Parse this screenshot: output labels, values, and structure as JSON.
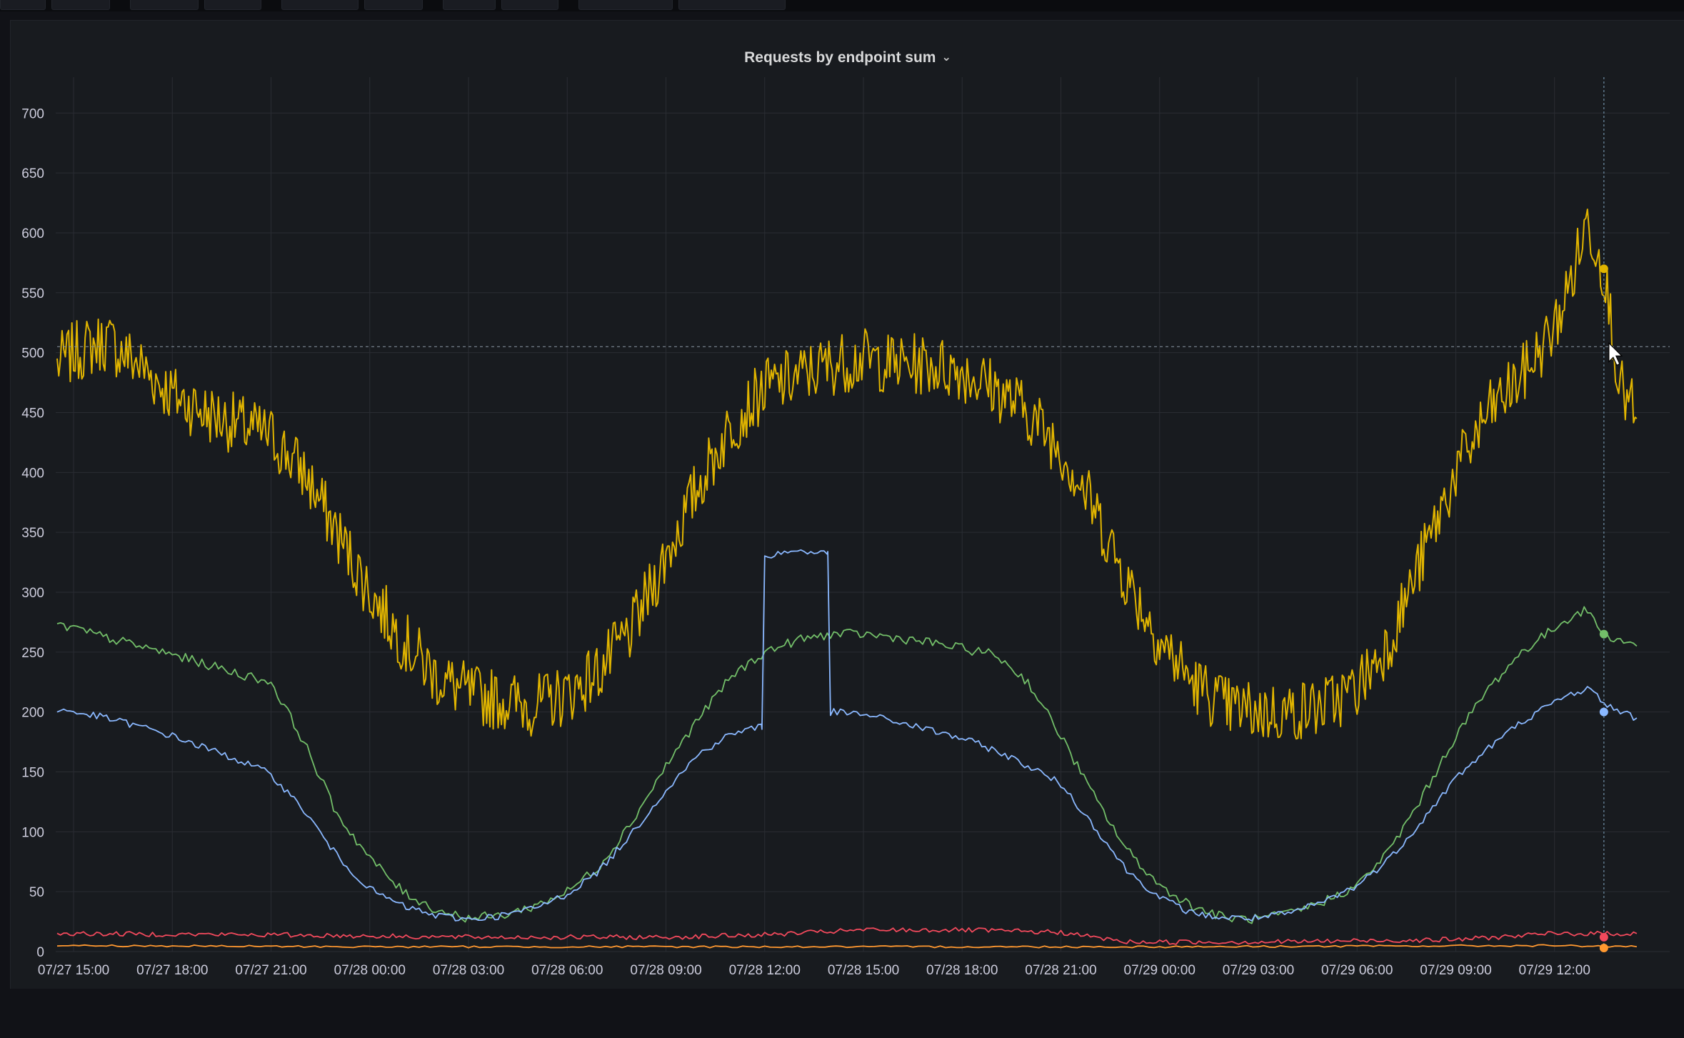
{
  "panel": {
    "title": "Requests by endpoint sum"
  },
  "colors": {
    "background": "#181b1f",
    "grid": "#2a2d33",
    "axis_text": "#ccccdc",
    "series_yellow": "#e0b400",
    "series_green": "#73bf69",
    "series_blue": "#8ab8ff",
    "series_red": "#f2495c",
    "series_orange": "#ff9830"
  },
  "icons": {
    "panel_menu": "chevron-down-icon",
    "cursor": "mouse-pointer-icon"
  },
  "chart_data": {
    "type": "line",
    "title": "Requests by endpoint sum",
    "xlabel": "",
    "ylabel": "",
    "ylim": [
      0,
      730
    ],
    "yticks": [
      0,
      50,
      100,
      150,
      200,
      250,
      300,
      350,
      400,
      450,
      500,
      550,
      600,
      650,
      700
    ],
    "xlim": [
      "07/27 14:30",
      "07/29 15:30"
    ],
    "xtick_labels": [
      "07/27 15:00",
      "07/27 18:00",
      "07/27 21:00",
      "07/28 00:00",
      "07/28 03:00",
      "07/28 06:00",
      "07/28 09:00",
      "07/28 12:00",
      "07/28 15:00",
      "07/28 18:00",
      "07/28 21:00",
      "07/29 00:00",
      "07/29 03:00",
      "07/29 06:00",
      "07/29 09:00",
      "07/29 12:00"
    ],
    "grid": true,
    "legend": "none",
    "hover_time": "07/29 13:30",
    "hover_value": 505,
    "series": [
      {
        "color": "#e0b400",
        "x": [
          "07/27 14:30",
          "07/27 15:00",
          "07/27 16:00",
          "07/27 17:00",
          "07/27 18:00",
          "07/27 19:00",
          "07/27 20:00",
          "07/27 21:00",
          "07/27 22:00",
          "07/27 23:00",
          "07/28 00:00",
          "07/28 01:00",
          "07/28 02:00",
          "07/28 03:00",
          "07/28 04:00",
          "07/28 05:00",
          "07/28 06:00",
          "07/28 07:00",
          "07/28 08:00",
          "07/28 09:00",
          "07/28 10:00",
          "07/28 11:00",
          "07/28 12:00",
          "07/28 13:00",
          "07/28 14:00",
          "07/28 15:00",
          "07/28 16:00",
          "07/28 17:00",
          "07/28 18:00",
          "07/28 19:00",
          "07/28 20:00",
          "07/28 21:00",
          "07/28 22:00",
          "07/28 23:00",
          "07/29 00:00",
          "07/29 01:00",
          "07/29 02:00",
          "07/29 03:00",
          "07/29 04:00",
          "07/29 05:00",
          "07/29 06:00",
          "07/29 07:00",
          "07/29 08:00",
          "07/29 09:00",
          "07/29 10:00",
          "07/29 11:00",
          "07/29 12:00",
          "07/29 12:30",
          "07/29 13:00",
          "07/29 13:30",
          "07/29 14:00",
          "07/29 14:30"
        ],
        "values": [
          490,
          500,
          510,
          490,
          465,
          450,
          440,
          430,
          400,
          350,
          300,
          260,
          230,
          215,
          210,
          205,
          215,
          235,
          270,
          330,
          390,
          440,
          470,
          480,
          490,
          495,
          490,
          490,
          485,
          470,
          450,
          420,
          370,
          310,
          260,
          225,
          205,
          200,
          200,
          205,
          220,
          260,
          330,
          400,
          450,
          480,
          520,
          560,
          610,
          570,
          470,
          445
        ]
      },
      {
        "color": "#73bf69",
        "x": [
          "07/27 14:30",
          "07/27 15:00",
          "07/27 16:00",
          "07/27 17:00",
          "07/27 18:00",
          "07/27 19:00",
          "07/27 20:00",
          "07/27 21:00",
          "07/27 22:00",
          "07/27 23:00",
          "07/28 00:00",
          "07/28 01:00",
          "07/28 02:00",
          "07/28 03:00",
          "07/28 04:00",
          "07/28 05:00",
          "07/28 06:00",
          "07/28 07:00",
          "07/28 08:00",
          "07/28 09:00",
          "07/28 10:00",
          "07/28 11:00",
          "07/28 12:00",
          "07/28 13:00",
          "07/28 14:00",
          "07/28 15:00",
          "07/28 16:00",
          "07/28 17:00",
          "07/28 18:00",
          "07/28 19:00",
          "07/28 20:00",
          "07/28 21:00",
          "07/28 22:00",
          "07/28 23:00",
          "07/29 00:00",
          "07/29 01:00",
          "07/29 02:00",
          "07/29 03:00",
          "07/29 04:00",
          "07/29 05:00",
          "07/29 06:00",
          "07/29 07:00",
          "07/29 08:00",
          "07/29 09:00",
          "07/29 10:00",
          "07/29 11:00",
          "07/29 12:00",
          "07/29 12:30",
          "07/29 13:00",
          "07/29 13:30",
          "07/29 14:00",
          "07/29 14:30"
        ],
        "values": [
          272,
          270,
          262,
          255,
          248,
          240,
          232,
          225,
          175,
          115,
          78,
          50,
          35,
          28,
          30,
          38,
          50,
          72,
          110,
          155,
          195,
          230,
          250,
          260,
          265,
          265,
          262,
          258,
          253,
          248,
          225,
          180,
          130,
          85,
          55,
          38,
          28,
          27,
          32,
          42,
          55,
          85,
          130,
          180,
          220,
          250,
          270,
          280,
          285,
          265,
          260,
          255
        ]
      },
      {
        "color": "#8ab8ff",
        "x": [
          "07/27 14:30",
          "07/27 15:00",
          "07/27 16:00",
          "07/27 17:00",
          "07/27 18:00",
          "07/27 19:00",
          "07/27 20:00",
          "07/27 21:00",
          "07/27 22:00",
          "07/27 23:00",
          "07/28 00:00",
          "07/28 01:00",
          "07/28 02:00",
          "07/28 03:00",
          "07/28 04:00",
          "07/28 05:00",
          "07/28 06:00",
          "07/28 07:00",
          "07/28 08:00",
          "07/28 09:00",
          "07/28 10:00",
          "07/28 11:00",
          "07/28 11:55",
          "07/28 12:00",
          "07/28 13:00",
          "07/28 13:55",
          "07/28 14:00",
          "07/28 15:00",
          "07/28 16:00",
          "07/28 17:00",
          "07/28 18:00",
          "07/28 19:00",
          "07/28 20:00",
          "07/28 21:00",
          "07/28 22:00",
          "07/28 23:00",
          "07/29 00:00",
          "07/29 01:00",
          "07/29 02:00",
          "07/29 03:00",
          "07/29 04:00",
          "07/29 05:00",
          "07/29 06:00",
          "07/29 07:00",
          "07/29 08:00",
          "07/29 09:00",
          "07/29 10:00",
          "07/29 11:00",
          "07/29 12:00",
          "07/29 12:30",
          "07/29 13:00",
          "07/29 13:30",
          "07/29 14:00",
          "07/29 14:30"
        ],
        "values": [
          202,
          200,
          195,
          188,
          180,
          170,
          160,
          148,
          118,
          80,
          52,
          38,
          30,
          27,
          30,
          36,
          48,
          68,
          100,
          135,
          165,
          182,
          188,
          330,
          335,
          332,
          200,
          198,
          192,
          185,
          178,
          168,
          155,
          140,
          105,
          68,
          45,
          32,
          28,
          28,
          32,
          42,
          55,
          78,
          110,
          145,
          170,
          192,
          208,
          215,
          220,
          208,
          200,
          195
        ]
      },
      {
        "color": "#f2495c",
        "x": [
          "07/27 14:30",
          "07/27 21:00",
          "07/28 03:00",
          "07/28 09:00",
          "07/28 12:00",
          "07/28 15:00",
          "07/28 18:00",
          "07/28 21:00",
          "07/28 23:00",
          "07/29 03:00",
          "07/29 09:00",
          "07/29 12:00",
          "07/29 14:30"
        ],
        "values": [
          15,
          14,
          12,
          12,
          14,
          18,
          18,
          16,
          8,
          8,
          10,
          15,
          15
        ]
      },
      {
        "color": "#ff9830",
        "x": [
          "07/27 14:30",
          "07/28 00:00",
          "07/28 12:00",
          "07/29 00:00",
          "07/29 12:00",
          "07/29 14:30"
        ],
        "values": [
          5,
          4,
          4,
          4,
          5,
          4
        ]
      }
    ]
  }
}
